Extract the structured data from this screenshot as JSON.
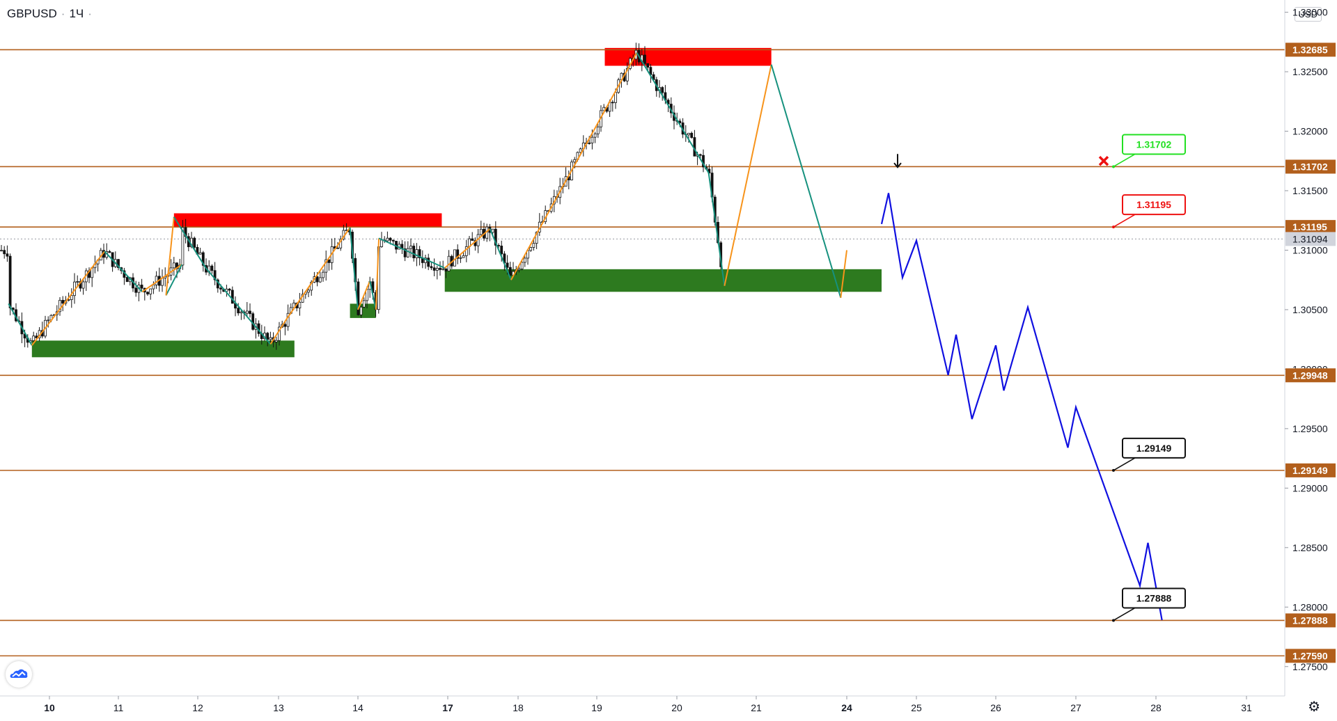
{
  "header": {
    "symbol": "GBPUSD",
    "timeframe": "1Ч",
    "currency": "USD"
  },
  "colors": {
    "level_line": "#b25f1c",
    "resistance_zone": "#ff0000",
    "support_zone": "#2d7a1f",
    "zigzag_up": "#f7931a",
    "zigzag_down": "#16917e",
    "projection": "#1010e0",
    "target_green": "#22e022",
    "target_red": "#ee1111",
    "target_black": "#111111"
  },
  "chart_data": {
    "type": "candlestick",
    "y_axis": {
      "range": [
        1.2725,
        1.331
      ],
      "ticks": [
        "1.27500",
        "1.28000",
        "1.28500",
        "1.29000",
        "1.29500",
        "1.30000",
        "1.30500",
        "1.31000",
        "1.31500",
        "1.32000",
        "1.32500",
        "1.33000"
      ]
    },
    "x_axis": {
      "tick_labels": [
        "10",
        "11",
        "12",
        "13",
        "14",
        "17",
        "18",
        "19",
        "20",
        "21",
        "24",
        "25",
        "26",
        "27",
        "28",
        "31"
      ]
    },
    "current_price": "1.31094",
    "levels": [
      "1.32685",
      "1.31702",
      "1.31195",
      "1.29948",
      "1.29149",
      "1.27888",
      "1.27590"
    ],
    "resistance_zones": [
      {
        "from_date": "11.7",
        "to_date": "16.8",
        "low": 1.31195,
        "high": 1.3131
      },
      {
        "from_date": "19.1",
        "to_date": "21.5",
        "low": 1.3255,
        "high": 1.327
      }
    ],
    "support_zones": [
      {
        "from_date": "9.7",
        "to_date": "13.2",
        "low": 1.301,
        "high": 1.3024
      },
      {
        "from_date": "13.9",
        "to_date": "14.6",
        "low": 1.3043,
        "high": 1.3055
      },
      {
        "from_date": "16.9",
        "to_date": "24.5",
        "low": 1.3065,
        "high": 1.3084
      }
    ],
    "zigzag": [
      [
        "9.3",
        1.3055
      ],
      [
        "9.7",
        1.302
      ],
      [
        "10.8",
        1.3099
      ],
      [
        "11.3",
        1.3065
      ],
      [
        "11.8",
        1.3088
      ],
      [
        "11.6",
        1.3062
      ],
      [
        "11.7",
        1.3128
      ],
      [
        "12.1",
        1.3085
      ],
      [
        "12.9",
        1.3021
      ],
      [
        "13.1",
        1.3042
      ],
      [
        "13.9",
        1.3119
      ],
      [
        "14.0",
        1.305
      ],
      [
        "14.4",
        1.3074
      ],
      [
        "14.6",
        1.305
      ],
      [
        "14.7",
        1.311
      ],
      [
        "16.9",
        1.3085
      ],
      [
        "17.6",
        1.3118
      ],
      [
        "17.9",
        1.3075
      ],
      [
        "19.5",
        1.3266
      ],
      [
        "20.4",
        1.3165
      ],
      [
        "20.6",
        1.307
      ],
      [
        "21.5",
        1.3256
      ],
      [
        "23.8",
        1.306
      ],
      [
        "24.0",
        1.31
      ]
    ],
    "projection_path": [
      [
        "24.5",
        1.3122
      ],
      [
        "24.6",
        1.3148
      ],
      [
        "24.8",
        1.3077
      ],
      [
        "25.0",
        1.3108
      ],
      [
        "25.4",
        1.2995
      ],
      [
        "25.5",
        1.3029
      ],
      [
        "25.7",
        1.2958
      ],
      [
        "26.0",
        1.302
      ],
      [
        "26.1",
        1.2982
      ],
      [
        "26.4",
        1.3052
      ],
      [
        "26.9",
        1.2934
      ],
      [
        "27.0",
        1.2968
      ],
      [
        "27.8",
        1.2818
      ],
      [
        "27.9",
        1.2854
      ],
      [
        "28.2",
        1.2789
      ]
    ],
    "targets": [
      {
        "label": "1.31702",
        "color": "green"
      },
      {
        "label": "1.31195",
        "color": "red"
      },
      {
        "label": "1.29149",
        "color": "black"
      },
      {
        "label": "1.27888",
        "color": "black"
      }
    ]
  }
}
